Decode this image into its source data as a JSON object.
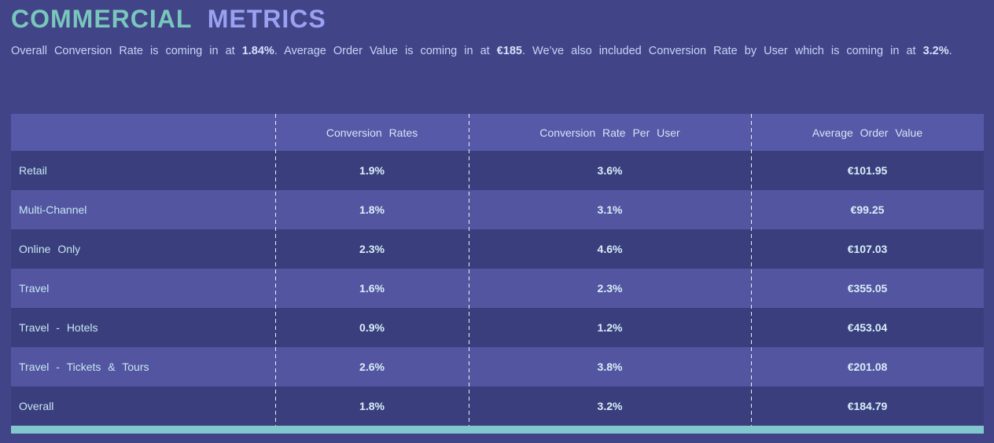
{
  "header": {
    "title_part1": "COMMERCIAL",
    "title_part2": "METRICS"
  },
  "intro": {
    "segments": [
      {
        "text": "Overall Conversion Rate is coming in at ",
        "bold": false
      },
      {
        "text": "1.84%",
        "bold": true
      },
      {
        "text": ". Average Order Value is coming in at ",
        "bold": false
      },
      {
        "text": "€185",
        "bold": true
      },
      {
        "text": ". We’ve also included Conversion Rate by User which is coming in at ",
        "bold": false
      },
      {
        "text": "3.2%",
        "bold": true
      },
      {
        "text": ".",
        "bold": false
      }
    ]
  },
  "table": {
    "columns": [
      "",
      "Conversion Rates",
      "Conversion Rate Per User",
      "Average Order Value"
    ],
    "rows": [
      {
        "label": "Retail",
        "conversion_rate": "1.9%",
        "conversion_rate_per_user": "3.6%",
        "average_order_value": "€101.95"
      },
      {
        "label": "Multi-Channel",
        "conversion_rate": "1.8%",
        "conversion_rate_per_user": "3.1%",
        "average_order_value": "€99.25"
      },
      {
        "label": "Online Only",
        "conversion_rate": "2.3%",
        "conversion_rate_per_user": "4.6%",
        "average_order_value": "€107.03"
      },
      {
        "label": "Travel",
        "conversion_rate": "1.6%",
        "conversion_rate_per_user": "2.3%",
        "average_order_value": "€355.05"
      },
      {
        "label": "Travel - Hotels",
        "conversion_rate": "0.9%",
        "conversion_rate_per_user": "1.2%",
        "average_order_value": "€453.04"
      },
      {
        "label": "Travel - Tickets & Tours",
        "conversion_rate": "2.6%",
        "conversion_rate_per_user": "3.8%",
        "average_order_value": "€201.08"
      },
      {
        "label": "Overall",
        "conversion_rate": "1.8%",
        "conversion_rate_per_user": "3.2%",
        "average_order_value": "€184.79"
      }
    ]
  },
  "colors": {
    "background": "#414487",
    "title_teal": "#79C6BD",
    "title_periwinkle": "#9BA1F1",
    "intro_text": "#C7D4F8",
    "header_row_bg": "#5659A7",
    "row_dark_bg": "#3B3E7D",
    "row_light_bg": "#5355A0",
    "label_text": "#C5E8F3",
    "value_text": "#D8EFF8",
    "accent_teal": "#82C7CE",
    "divider_white": "#FFFFFF"
  },
  "chart_data": {
    "type": "table",
    "title": "COMMERCIAL METRICS",
    "row_labels": [
      "Retail",
      "Multi-Channel",
      "Online Only",
      "Travel",
      "Travel - Hotels",
      "Travel - Tickets & Tours",
      "Overall"
    ],
    "columns": [
      "Conversion Rates",
      "Conversion Rate Per User",
      "Average Order Value"
    ],
    "series": [
      {
        "name": "Conversion Rates",
        "values": [
          "1.9%",
          "1.8%",
          "2.3%",
          "1.6%",
          "0.9%",
          "2.6%",
          "1.8%"
        ]
      },
      {
        "name": "Conversion Rate Per User",
        "values": [
          "3.6%",
          "3.1%",
          "4.6%",
          "2.3%",
          "1.2%",
          "3.8%",
          "3.2%"
        ]
      },
      {
        "name": "Average Order Value",
        "values": [
          "€101.95",
          "€99.25",
          "€107.03",
          "€355.05",
          "€453.04",
          "€201.08",
          "€184.79"
        ]
      }
    ],
    "summary": {
      "overall_conversion_rate": "1.84%",
      "average_order_value": "€185",
      "conversion_rate_by_user": "3.2%"
    }
  }
}
